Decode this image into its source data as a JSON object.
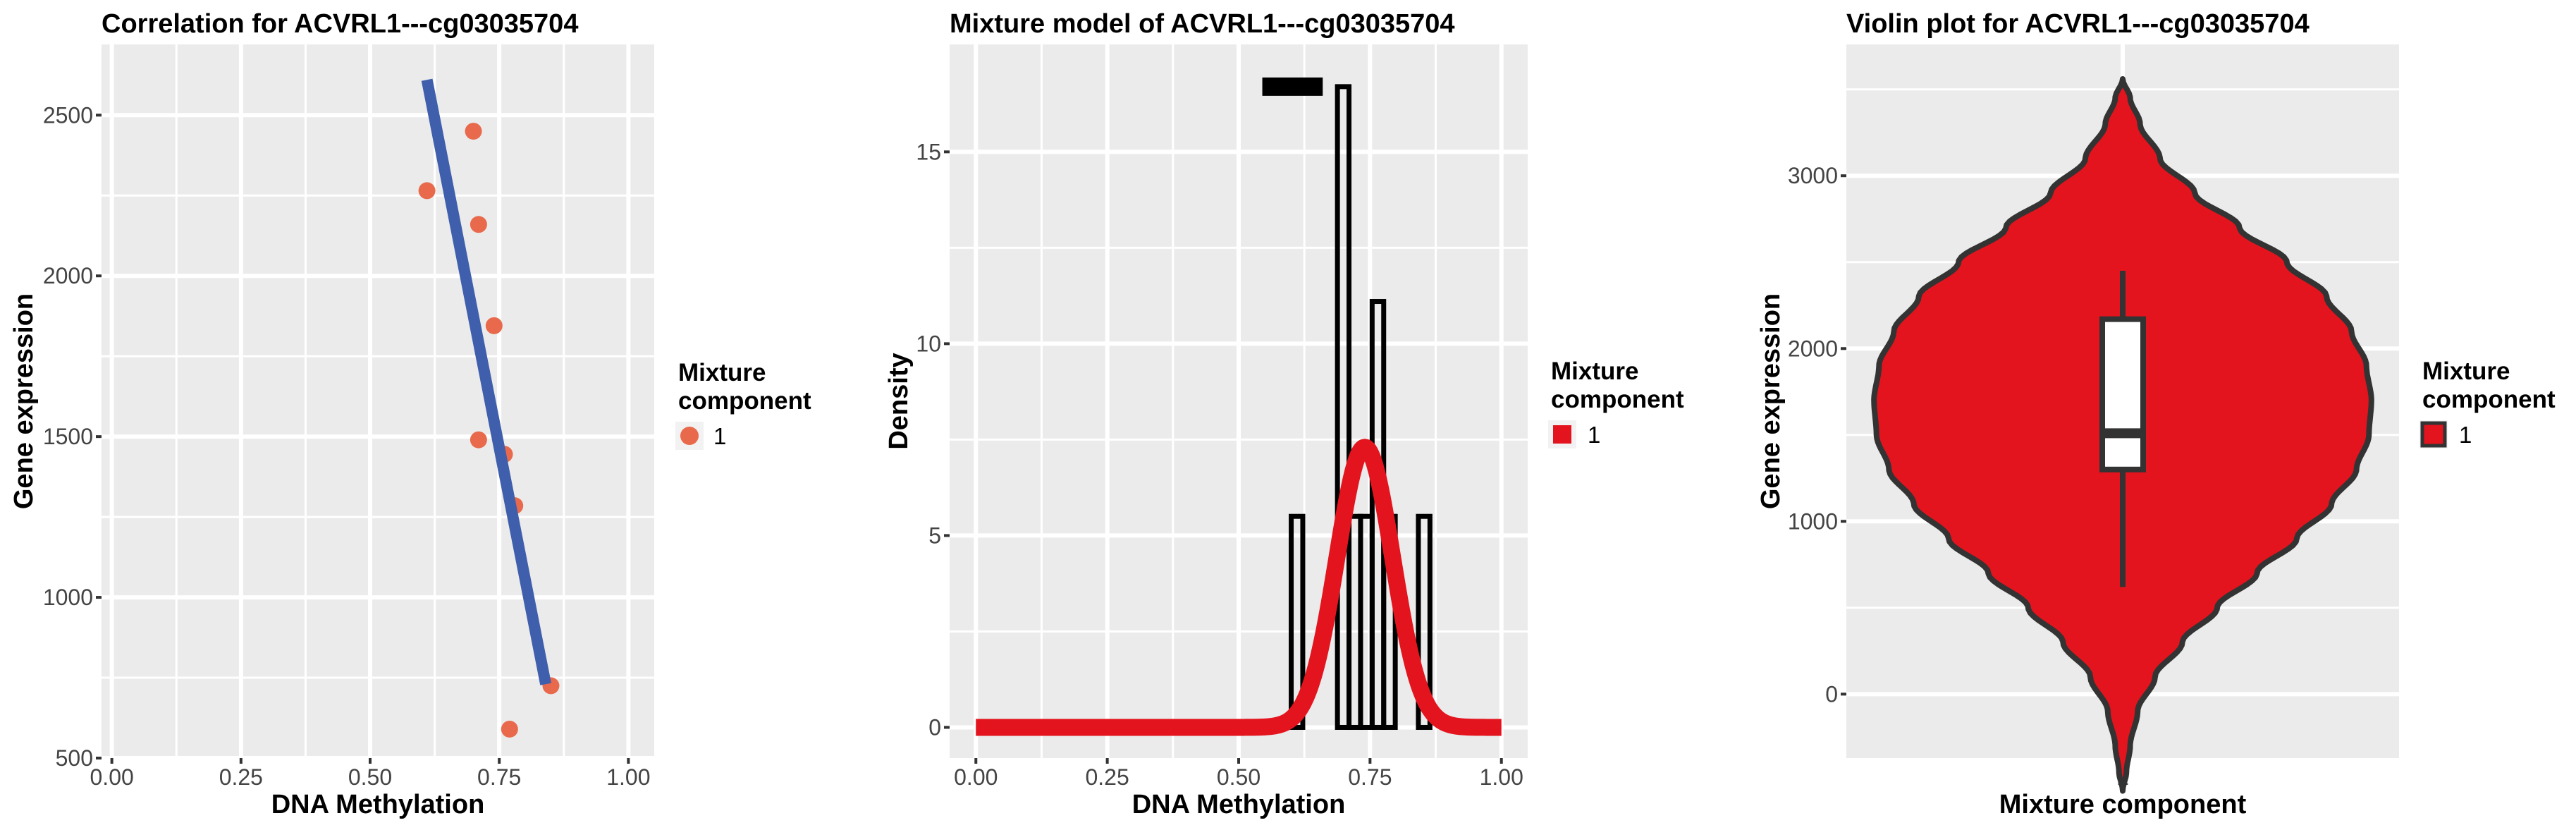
{
  "chart_data": [
    {
      "type": "scatter",
      "title": "Correlation for ACVRL1---cg03035704",
      "xlabel": "DNA Methylation",
      "ylabel": "Gene expression",
      "xlim": [
        -0.02,
        1.05
      ],
      "ylim": [
        500,
        2720
      ],
      "x_ticks": [
        0.0,
        0.25,
        0.5,
        0.75,
        1.0
      ],
      "x_tick_labels": [
        "0.00",
        "0.25",
        "0.50",
        "0.75",
        "1.00"
      ],
      "y_ticks": [
        500,
        1000,
        1500,
        2000,
        2500
      ],
      "y_tick_labels": [
        "500",
        "1000",
        "1500",
        "2000",
        "2500"
      ],
      "points": [
        {
          "x": 0.61,
          "y": 2265
        },
        {
          "x": 0.7,
          "y": 2450
        },
        {
          "x": 0.71,
          "y": 2160
        },
        {
          "x": 0.74,
          "y": 1845
        },
        {
          "x": 0.71,
          "y": 1490
        },
        {
          "x": 0.76,
          "y": 1445
        },
        {
          "x": 0.78,
          "y": 1285
        },
        {
          "x": 0.85,
          "y": 725
        },
        {
          "x": 0.77,
          "y": 590
        }
      ],
      "fit_line": {
        "x": [
          0.61,
          0.84
        ],
        "y": [
          2610,
          730
        ]
      },
      "point_color": "#e8694b",
      "line_color": "#3f5fad",
      "legend": {
        "title": "Mixture\ncomponent",
        "title_lines": [
          "Mixture",
          "component"
        ],
        "entries": [
          {
            "label": "1",
            "color": "#e8694b",
            "shape": "circle"
          }
        ]
      },
      "grid": true
    },
    {
      "type": "histogram",
      "title": "Mixture model of ACVRL1---cg03035704",
      "xlabel": "DNA Methylation",
      "ylabel": "Density",
      "xlim": [
        -0.05,
        1.05
      ],
      "ylim": [
        -0.8,
        17.8
      ],
      "x_ticks": [
        0.0,
        0.25,
        0.5,
        0.75,
        1.0
      ],
      "x_tick_labels": [
        "0.00",
        "0.25",
        "0.50",
        "0.75",
        "1.00"
      ],
      "y_ticks": [
        0,
        5,
        10,
        15
      ],
      "y_tick_labels": [
        "0",
        "5",
        "10",
        "15"
      ],
      "bins": [
        {
          "x0": 0.6,
          "x1": 0.622,
          "density": 5.5
        },
        {
          "x0": 0.622,
          "x1": 0.644,
          "density": 0.0
        },
        {
          "x0": 0.644,
          "x1": 0.666,
          "density": 0.0
        },
        {
          "x0": 0.666,
          "x1": 0.688,
          "density": 0.0
        },
        {
          "x0": 0.688,
          "x1": 0.71,
          "density": 16.7
        },
        {
          "x0": 0.71,
          "x1": 0.732,
          "density": 5.5
        },
        {
          "x0": 0.732,
          "x1": 0.754,
          "density": 5.5
        },
        {
          "x0": 0.754,
          "x1": 0.776,
          "density": 11.1
        },
        {
          "x0": 0.776,
          "x1": 0.798,
          "density": 5.5
        },
        {
          "x0": 0.798,
          "x1": 0.82,
          "density": 0.0
        },
        {
          "x0": 0.82,
          "x1": 0.842,
          "density": 0.0
        },
        {
          "x0": 0.842,
          "x1": 0.864,
          "density": 5.5
        }
      ],
      "density_curve": {
        "mean": 0.74,
        "sd": 0.053,
        "peak": 7.3,
        "x_range": [
          0.0,
          1.0
        ]
      },
      "component_marker": {
        "x0": 0.545,
        "x1": 0.66,
        "y": 16.7
      },
      "curve_color": "#e3141e",
      "legend": {
        "title_lines": [
          "Mixture",
          "component"
        ],
        "entries": [
          {
            "label": "1",
            "color": "#e3141e",
            "shape": "square"
          }
        ]
      },
      "grid": true
    },
    {
      "type": "violin",
      "title": "Violin plot for ACVRL1---cg03035704",
      "xlabel": "Mixture component",
      "ylabel": "Gene expression",
      "ylim": [
        -370,
        3760
      ],
      "y_ticks": [
        0,
        1000,
        2000,
        3000
      ],
      "y_tick_labels": [
        "0",
        "1000",
        "2000",
        "3000"
      ],
      "categories": [
        "1"
      ],
      "violin": {
        "y_min": -560,
        "y_max": 3560,
        "fill": "#e3141e",
        "outline": "#333333"
      },
      "boxplot": {
        "whisker_low": 620,
        "q1": 1300,
        "median": 1510,
        "q3": 2170,
        "whisker_high": 2450
      },
      "legend": {
        "title_lines": [
          "Mixture",
          "component"
        ],
        "entries": [
          {
            "label": "1",
            "color": "#e3141e",
            "shape": "square"
          }
        ]
      },
      "grid": true
    }
  ]
}
